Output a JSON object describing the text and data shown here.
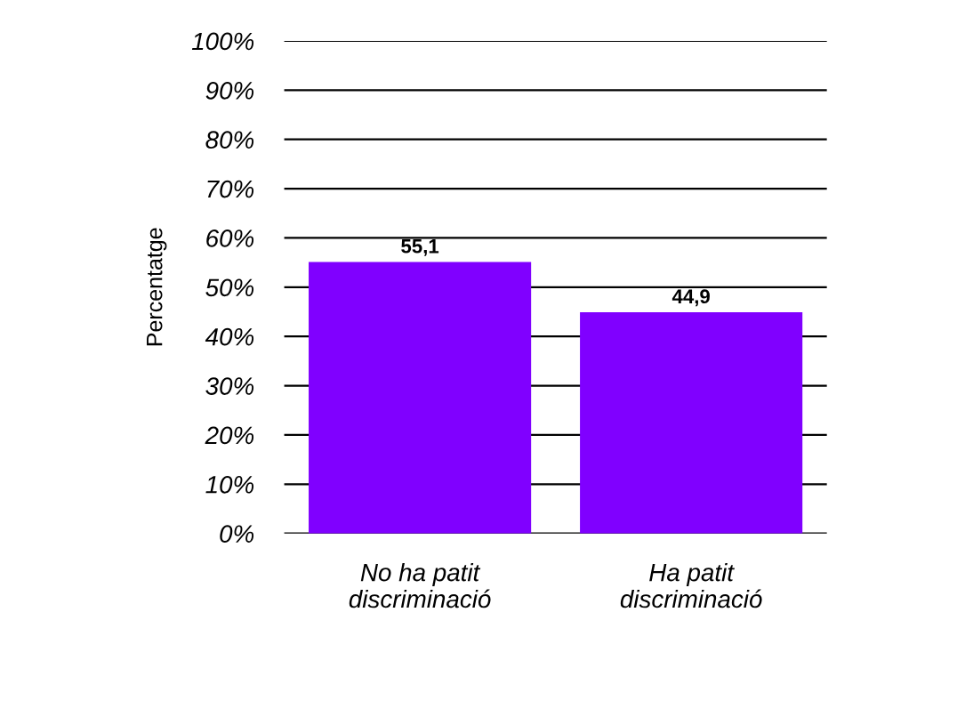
{
  "chart_data": {
    "type": "bar",
    "ylabel": "Percentatge",
    "categories": [
      "No ha patit\ndiscriminació",
      "Ha patit\ndiscriminació"
    ],
    "values": [
      55.1,
      44.9
    ],
    "color": "#8000ff",
    "value_labels": [
      "55,1",
      "44,9"
    ],
    "ylim": [
      0,
      100
    ],
    "yticks": [
      {
        "value": 0,
        "label": "0%"
      },
      {
        "value": 10,
        "label": "10%"
      },
      {
        "value": 20,
        "label": "20%"
      },
      {
        "value": 30,
        "label": "30%"
      },
      {
        "value": 40,
        "label": "40%"
      },
      {
        "value": 50,
        "label": "50%"
      },
      {
        "value": 60,
        "label": "60%"
      },
      {
        "value": 70,
        "label": "70%"
      },
      {
        "value": 80,
        "label": "80%"
      },
      {
        "value": 90,
        "label": "90%"
      },
      {
        "value": 100,
        "label": "100%"
      }
    ],
    "grid": "y",
    "legend": false
  }
}
